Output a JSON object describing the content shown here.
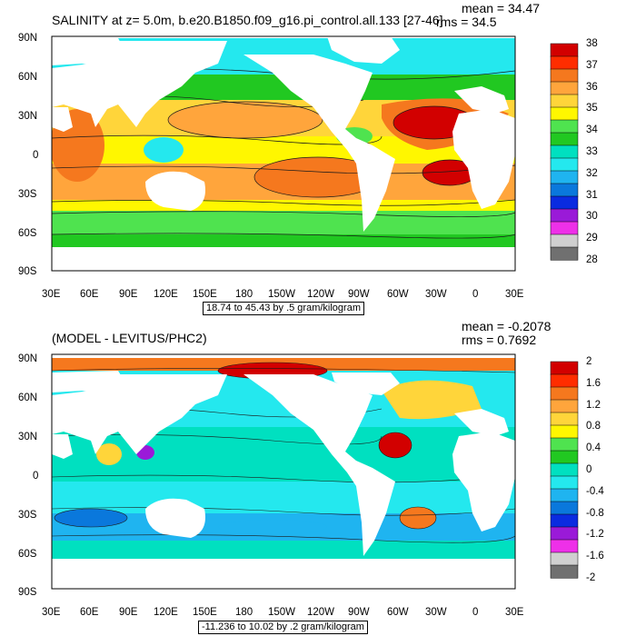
{
  "colors": {
    "ocean_white": "#ffffff",
    "frame": "#000000",
    "contour": "#1a1a1a"
  },
  "panels": [
    {
      "title": "SALINITY at z=   5.0m, b.e20.B1850.f09_g16.pi_control.all.133 [27-46]",
      "mean": "mean = 34.47",
      "rms": "rms = 34.5",
      "info": "18.74 to 45.43 by .5 gram/kilogram",
      "lat_ticks": [
        "90N",
        "60N",
        "30N",
        "0",
        "30S",
        "60S",
        "90S"
      ],
      "lon_ticks": [
        "30E",
        "60E",
        "90E",
        "120E",
        "150E",
        "180",
        "150W",
        "120W",
        "90W",
        "60W",
        "30W",
        "0",
        "30E"
      ],
      "colorbar": {
        "labels": [
          "38",
          "37",
          "36",
          "35",
          "34",
          "33",
          "32",
          "31",
          "30",
          "29",
          "28"
        ],
        "colors": [
          "#d20000",
          "#ff2d00",
          "#f5781e",
          "#ffa53c",
          "#ffd53a",
          "#fff700",
          "#4fe34f",
          "#21c821",
          "#00e0c0",
          "#24e8ee",
          "#1fb4f0",
          "#0a78dc",
          "#0a2be0",
          "#9a1ad8",
          "#ee30e8",
          "#d0d0d0",
          "#707070"
        ]
      }
    },
    {
      "title": "(MODEL - LEVITUS/PHC2)",
      "mean": "mean = -0.2078",
      "rms": "rms = 0.7692",
      "info": "-11.236 to 10.02 by .2 gram/kilogram",
      "lat_ticks": [
        "90N",
        "60N",
        "30N",
        "0",
        "30S",
        "60S",
        "90S"
      ],
      "lon_ticks": [
        "30E",
        "60E",
        "90E",
        "120E",
        "150E",
        "180",
        "150W",
        "120W",
        "90W",
        "60W",
        "30W",
        "0",
        "30E"
      ],
      "colorbar": {
        "labels": [
          "2",
          "1.6",
          "1.2",
          "0.8",
          "0.4",
          "0",
          "-0.4",
          "-0.8",
          "-1.2",
          "-1.6",
          "-2"
        ],
        "colors": [
          "#d20000",
          "#ff2d00",
          "#f5781e",
          "#ffa53c",
          "#ffd53a",
          "#fff700",
          "#4fe34f",
          "#21c821",
          "#00e0c0",
          "#24e8ee",
          "#1fb4f0",
          "#0a78dc",
          "#0a2be0",
          "#9a1ad8",
          "#ee30e8",
          "#d0d0d0",
          "#707070"
        ]
      }
    }
  ]
}
